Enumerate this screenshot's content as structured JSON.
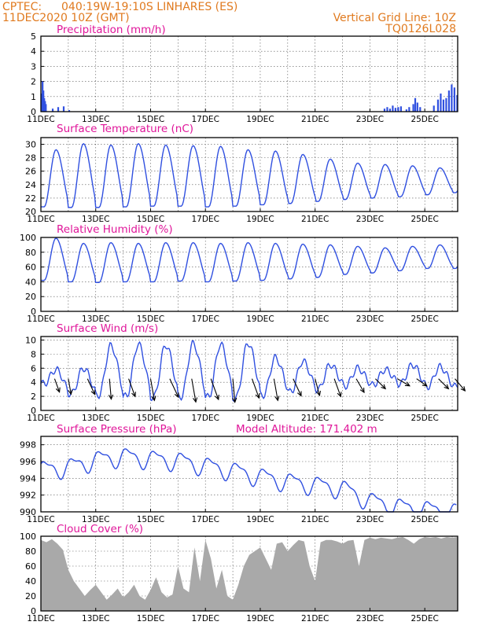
{
  "header": {
    "source": "CPTEC:",
    "location": "040:19W-19:10S   LINHARES (ES)",
    "run": "11DEC2020  10Z (GMT)",
    "grid_note": "Vertical Grid Line: 10Z",
    "model_code": "TQ0126L028"
  },
  "x_axis": {
    "labels": [
      "11DEC",
      "13DEC",
      "15DEC",
      "17DEC",
      "19DEC",
      "21DEC",
      "23DEC",
      "25DEC"
    ],
    "label_days": [
      0,
      2,
      4,
      6,
      8,
      10,
      12,
      14
    ],
    "day_span": 15.2
  },
  "colors": {
    "series": "#3050e0",
    "cloud": "#a9a9a9",
    "header": "#e07a1f",
    "title": "#e0169a"
  },
  "chart_data": [
    {
      "id": "precipitation",
      "type": "bar",
      "title": "Precipitation (mm/h)",
      "ylim": [
        0,
        5
      ],
      "yticks": [
        0,
        1,
        2,
        3,
        4,
        5
      ],
      "grid": true,
      "x": [
        0.0,
        0.03,
        0.06,
        0.09,
        0.12,
        0.15,
        0.4,
        0.6,
        0.8,
        1.0,
        12.5,
        12.6,
        12.7,
        12.8,
        12.9,
        13.0,
        13.1,
        13.3,
        13.4,
        13.55,
        13.62,
        13.7,
        13.8,
        14.3,
        14.45,
        14.55,
        14.65,
        14.75,
        14.85,
        14.95,
        15.05,
        15.15
      ],
      "values": [
        1.2,
        2.0,
        1.4,
        0.9,
        0.7,
        0.5,
        0.2,
        0.3,
        0.35,
        0.1,
        0.2,
        0.3,
        0.2,
        0.4,
        0.25,
        0.3,
        0.35,
        0.15,
        0.3,
        0.5,
        0.9,
        0.6,
        0.3,
        0.4,
        0.8,
        1.2,
        0.8,
        0.9,
        1.4,
        1.8,
        1.6,
        1.1
      ]
    },
    {
      "id": "temperature",
      "type": "line",
      "title": "Surface Temperature (nC)",
      "ylim": [
        20,
        31
      ],
      "yticks": [
        20,
        22,
        24,
        26,
        28,
        30
      ],
      "grid": true,
      "peaks": [
        29.2,
        30.1,
        29.9,
        30.1,
        29.9,
        29.8,
        29.7,
        29.2,
        29.0,
        28.5,
        27.8,
        27.2,
        27.0,
        26.8,
        26.5
      ],
      "troughs": [
        20.7,
        20.6,
        20.6,
        20.7,
        20.8,
        20.8,
        20.7,
        20.8,
        21.0,
        21.2,
        21.5,
        21.8,
        22.0,
        22.2,
        22.5,
        22.8
      ]
    },
    {
      "id": "humidity",
      "type": "line",
      "title": "Relative Humidity (%)",
      "ylim": [
        0,
        100
      ],
      "yticks": [
        0,
        20,
        40,
        60,
        80,
        100
      ],
      "grid": true,
      "peaks": [
        99,
        92,
        93,
        92,
        93,
        93,
        92,
        93,
        92,
        91,
        90,
        88,
        86,
        88,
        90,
        92
      ],
      "troughs": [
        42,
        40,
        39,
        40,
        40,
        41,
        40,
        41,
        42,
        44,
        46,
        50,
        52,
        55,
        58
      ]
    },
    {
      "id": "wind",
      "type": "line",
      "title": "Surface Wind (m/s)",
      "ylim": [
        0,
        10.5
      ],
      "yticks": [
        0,
        2,
        4,
        6,
        8,
        10
      ],
      "grid": true,
      "peaks": [
        5.8,
        6.0,
        9.2,
        9.4,
        9.3,
        9.5,
        9.4,
        9.6,
        7.5,
        7.0,
        6.5,
        6.0,
        5.8,
        6.5,
        6.2
      ],
      "troughs": [
        3.8,
        2.4,
        2.2,
        2.0,
        1.9,
        2.0,
        1.9,
        1.8,
        2.2,
        2.6,
        3.0,
        3.5,
        3.6,
        3.8,
        3.4
      ],
      "arrow_days": [
        0.5,
        1.0,
        1.7,
        2.5,
        3.2,
        4.0,
        4.7,
        5.5,
        6.2,
        7.0,
        7.7,
        8.5,
        9.2,
        10.0,
        10.7,
        11.5,
        12.2,
        13.0,
        13.7,
        14.5,
        15.1
      ],
      "arrow_dir_deg": [
        250,
        260,
        245,
        265,
        250,
        260,
        245,
        260,
        250,
        265,
        250,
        260,
        245,
        255,
        250,
        240,
        225,
        210,
        215,
        225,
        230
      ],
      "arrow_len_px": [
        18,
        20,
        22,
        26,
        24,
        28,
        26,
        30,
        28,
        30,
        26,
        28,
        24,
        22,
        24,
        20,
        18,
        18,
        16,
        18,
        20
      ]
    },
    {
      "id": "pressure",
      "type": "line",
      "title": "Surface Pressure (hPa)",
      "annotation": "Model Altitude: 171.402 m",
      "ylim": [
        990,
        999
      ],
      "yticks": [
        990,
        992,
        994,
        996,
        998
      ],
      "grid": true,
      "hourly_base": [
        995.0,
        995.3,
        996.2,
        996.6,
        996.3,
        996.1,
        995.5,
        994.9,
        994.2,
        993.6,
        993.2,
        992.8,
        991.3,
        990.6,
        990.3,
        990.0
      ],
      "amplitude": 2.0
    },
    {
      "id": "cloud",
      "type": "area",
      "title": "Cloud Cover (%)",
      "ylim": [
        0,
        100
      ],
      "yticks": [
        0,
        20,
        40,
        60,
        80,
        100
      ],
      "grid": true,
      "x": [
        0,
        0.2,
        0.4,
        0.6,
        0.8,
        1.0,
        1.2,
        1.4,
        1.6,
        1.8,
        2.0,
        2.2,
        2.4,
        2.6,
        2.8,
        3.0,
        3.2,
        3.4,
        3.6,
        3.8,
        4.0,
        4.2,
        4.4,
        4.6,
        4.8,
        5.0,
        5.2,
        5.4,
        5.6,
        5.8,
        6.0,
        6.2,
        6.4,
        6.6,
        6.8,
        7.0,
        7.2,
        7.4,
        7.6,
        7.8,
        8.0,
        8.2,
        8.4,
        8.6,
        8.8,
        9.0,
        9.2,
        9.4,
        9.6,
        9.8,
        10.0,
        10.2,
        10.4,
        10.6,
        10.8,
        11.0,
        11.2,
        11.4,
        11.6,
        11.8,
        12.0,
        12.2,
        12.4,
        12.6,
        12.8,
        13.0,
        13.2,
        13.4,
        13.6,
        13.8,
        14.0,
        14.2,
        14.4,
        14.6,
        14.8,
        15.0,
        15.2
      ],
      "values": [
        95,
        92,
        96,
        90,
        82,
        55,
        40,
        30,
        20,
        28,
        35,
        25,
        15,
        22,
        30,
        18,
        25,
        35,
        20,
        15,
        28,
        45,
        25,
        18,
        22,
        60,
        30,
        25,
        85,
        40,
        95,
        70,
        30,
        55,
        20,
        15,
        35,
        60,
        75,
        80,
        85,
        70,
        55,
        90,
        92,
        80,
        88,
        95,
        93,
        60,
        40,
        92,
        95,
        95,
        93,
        90,
        94,
        95,
        60,
        95,
        98,
        96,
        98,
        97,
        96,
        98,
        99,
        95,
        90,
        96,
        99,
        98,
        99,
        97,
        99,
        98,
        99
      ]
    }
  ]
}
